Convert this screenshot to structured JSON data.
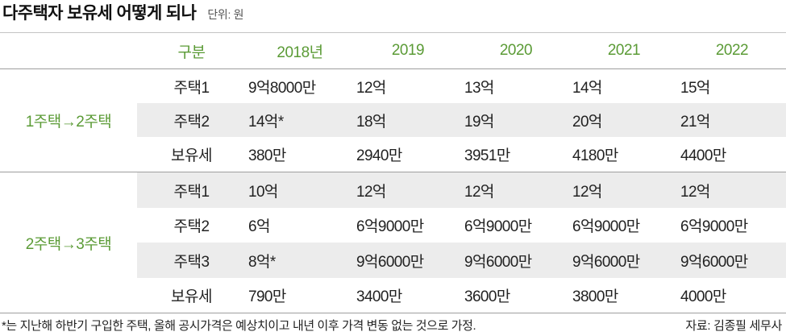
{
  "colors": {
    "accent": "#5b9b36",
    "band": "#ececec",
    "rule": "#9e9e9e",
    "text": "#222222"
  },
  "chart_data": {
    "type": "table",
    "title": "다주택자 보유세 어떻게 되나",
    "unit": "단위: 원",
    "columns": [
      "구분",
      "2018년",
      "2019",
      "2020",
      "2021",
      "2022"
    ],
    "groups": [
      {
        "label": "1주택→2주택",
        "rows": [
          {
            "label": "주택1",
            "values": [
              "9억8000만",
              "12억",
              "13억",
              "14억",
              "15억"
            ]
          },
          {
            "label": "주택2",
            "values": [
              "14억*",
              "18억",
              "19억",
              "20억",
              "21억"
            ]
          },
          {
            "label": "보유세",
            "values": [
              "380만",
              "2940만",
              "3951만",
              "4180만",
              "4400만"
            ]
          }
        ]
      },
      {
        "label": "2주택→3주택",
        "rows": [
          {
            "label": "주택1",
            "values": [
              "10억",
              "12억",
              "12억",
              "12억",
              "12억"
            ]
          },
          {
            "label": "주택2",
            "values": [
              "6억",
              "6억9000만",
              "6억9000만",
              "6억9000만",
              "6억9000만"
            ]
          },
          {
            "label": "주택3",
            "values": [
              "8억*",
              "9억6000만",
              "9억6000만",
              "9억6000만",
              "9억6000만"
            ]
          },
          {
            "label": "보유세",
            "values": [
              "790만",
              "3400만",
              "3600만",
              "3800만",
              "4000만"
            ]
          }
        ]
      }
    ],
    "footnote": "*는 지난해 하반기 구입한 주택, 올해 공시가격은 예상치이고 내년 이후 가격 변동 없는 것으로 가정.",
    "source": "자료: 김종필 세무사"
  }
}
